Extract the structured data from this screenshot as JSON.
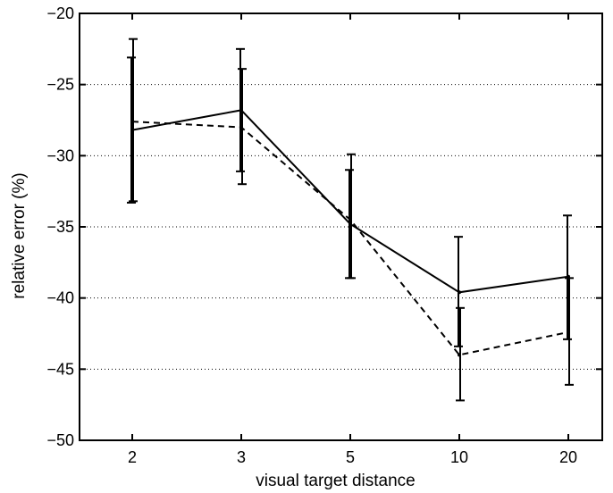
{
  "chart_data": {
    "type": "line",
    "xlabel": "visual target distance",
    "ylabel": "relative error (%)",
    "categories": [
      "2",
      "3",
      "5",
      "10",
      "20"
    ],
    "ylim": [
      -50,
      -20
    ],
    "yticks": [
      -50,
      -45,
      -40,
      -35,
      -30,
      -25,
      -20
    ],
    "ytick_labels": [
      "−50",
      "−45",
      "−40",
      "−35",
      "−30",
      "−25",
      "−20"
    ],
    "grid": "horizontal dotted",
    "series": [
      {
        "style": "solid",
        "color": "#000000",
        "values": [
          -28.2,
          -26.8,
          -34.8,
          -39.6,
          -38.5
        ],
        "err_low": [
          -33.3,
          -31.1,
          -38.6,
          -43.4,
          -42.9
        ],
        "err_high": [
          -23.1,
          -22.5,
          -31.0,
          -35.7,
          -34.2
        ]
      },
      {
        "style": "dashed",
        "color": "#000000",
        "values": [
          -27.6,
          -28.0,
          -34.5,
          -44.0,
          -42.4
        ],
        "err_low": [
          -33.2,
          -32.0,
          -38.6,
          -47.2,
          -46.1
        ],
        "err_high": [
          -21.8,
          -23.9,
          -29.9,
          -40.7,
          -38.6
        ]
      }
    ]
  }
}
